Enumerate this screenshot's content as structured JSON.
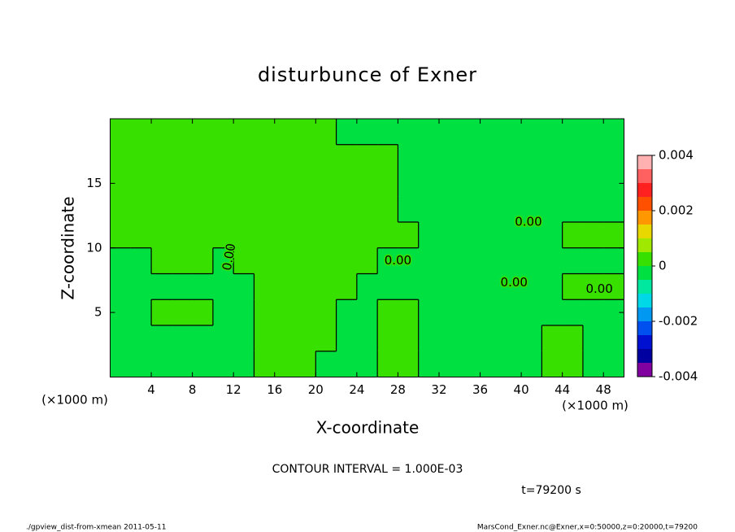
{
  "chart_data": {
    "type": "contour",
    "title": "disturbunce of Exner",
    "xlabel": "X-coordinate",
    "ylabel": "Z-coordinate",
    "xunit_labels": [
      "(×1000 m)",
      "(×1000 m)"
    ],
    "xlim": [
      0,
      50
    ],
    "ylim": [
      0,
      20
    ],
    "xticks": [
      4,
      8,
      12,
      16,
      20,
      24,
      28,
      32,
      36,
      40,
      44,
      48
    ],
    "yticks": [
      5,
      10,
      15
    ],
    "field": {
      "x": [
        1,
        3,
        5,
        7,
        9,
        11,
        13,
        15,
        17,
        19,
        21,
        23,
        25,
        27,
        29,
        31,
        33,
        35,
        37,
        39,
        41,
        43,
        45,
        47,
        49
      ],
      "z": [
        1,
        3,
        5,
        7,
        9,
        11,
        13,
        15,
        17,
        19
      ],
      "values": [
        [
          -0.0003,
          -0.0003,
          -0.0003,
          -0.0003,
          -0.0003,
          -0.0003,
          -0.0003,
          0.0003,
          0.0003,
          0.0003,
          -0.0003,
          -0.0003,
          -0.0003,
          0.0003,
          0.0003,
          -0.0003,
          -0.0003,
          -0.0003,
          -0.0003,
          -0.0003,
          -0.0003,
          0.0003,
          0.0003,
          -0.0003,
          -0.0003
        ],
        [
          -0.0003,
          -0.0003,
          -0.0003,
          -0.0003,
          -0.0003,
          -0.0003,
          -0.0003,
          0.0003,
          0.0003,
          0.0003,
          0.0003,
          -0.0003,
          -0.0003,
          0.0003,
          0.0003,
          -0.0003,
          -0.0003,
          -0.0003,
          -0.0003,
          -0.0003,
          -0.0003,
          0.0003,
          0.0003,
          -0.0003,
          -0.0003
        ],
        [
          -0.0003,
          -0.0003,
          0.0003,
          0.0003,
          0.0003,
          -0.0003,
          -0.0003,
          0.0003,
          0.0003,
          0.0003,
          0.0003,
          -0.0003,
          -0.0003,
          0.0003,
          0.0003,
          -0.0003,
          -0.0003,
          -0.0003,
          -0.0003,
          -0.0003,
          -0.0003,
          -0.0003,
          -0.0003,
          -0.0003,
          -0.0003
        ],
        [
          -0.0003,
          -0.0003,
          -0.0003,
          -0.0003,
          -0.0003,
          -0.0003,
          -0.0003,
          0.0003,
          0.0003,
          0.0003,
          0.0003,
          0.0003,
          -0.0003,
          -0.0003,
          -0.0003,
          -0.0003,
          -0.0003,
          -0.0003,
          -0.0003,
          -0.0003,
          -0.0003,
          -0.0003,
          0.0003,
          0.0003,
          0.0003
        ],
        [
          -0.0003,
          -0.0003,
          0.0003,
          0.0003,
          0.0003,
          -0.0003,
          0.0003,
          0.0003,
          0.0003,
          0.0003,
          0.0003,
          0.0003,
          0.0003,
          -0.0003,
          -0.0003,
          -0.0003,
          -0.0003,
          -0.0003,
          -0.0003,
          -0.0003,
          -0.0003,
          -0.0003,
          -0.0003,
          -0.0003,
          -0.0003
        ],
        [
          0.0003,
          0.0003,
          0.0003,
          0.0003,
          0.0003,
          0.0003,
          0.0003,
          0.0003,
          0.0003,
          0.0003,
          0.0003,
          0.0003,
          0.0003,
          0.0003,
          0.0003,
          -0.0003,
          -0.0003,
          -0.0003,
          -0.0003,
          -0.0003,
          -0.0003,
          -0.0003,
          0.0003,
          0.0003,
          0.0003
        ],
        [
          0.0003,
          0.0003,
          0.0003,
          0.0003,
          0.0003,
          0.0003,
          0.0003,
          0.0003,
          0.0003,
          0.0003,
          0.0003,
          0.0003,
          0.0003,
          0.0003,
          -0.0003,
          -0.0003,
          -0.0003,
          -0.0003,
          -0.0003,
          -0.0003,
          -0.0003,
          -0.0003,
          -0.0003,
          -0.0003,
          -0.0003
        ],
        [
          0.0003,
          0.0003,
          0.0003,
          0.0003,
          0.0003,
          0.0003,
          0.0003,
          0.0003,
          0.0003,
          0.0003,
          0.0003,
          0.0003,
          0.0003,
          0.0003,
          -0.0003,
          -0.0003,
          -0.0003,
          -0.0003,
          -0.0003,
          -0.0003,
          -0.0003,
          -0.0003,
          -0.0003,
          -0.0003,
          -0.0003
        ],
        [
          0.0003,
          0.0003,
          0.0003,
          0.0003,
          0.0003,
          0.0003,
          0.0003,
          0.0003,
          0.0003,
          0.0003,
          0.0003,
          0.0003,
          0.0003,
          0.0003,
          -0.0003,
          -0.0003,
          -0.0003,
          -0.0003,
          -0.0003,
          -0.0003,
          -0.0003,
          -0.0003,
          -0.0003,
          -0.0003,
          -0.0003
        ],
        [
          0.0003,
          0.0003,
          0.0003,
          0.0003,
          0.0003,
          0.0003,
          0.0003,
          0.0003,
          0.0003,
          0.0003,
          0.0003,
          -0.0003,
          -0.0003,
          -0.0003,
          -0.0003,
          -0.0003,
          -0.0003,
          -0.0003,
          -0.0003,
          -0.0003,
          -0.0003,
          -0.0003,
          -0.0003,
          -0.0003,
          -0.0003
        ]
      ]
    },
    "contour_labels": [
      {
        "text": "0.00",
        "x": 11.6,
        "z": 9.3
      },
      {
        "text": "0.00",
        "x": 28.0,
        "z": 9.0
      },
      {
        "text": "0.00",
        "x": 40.7,
        "z": 12.0
      },
      {
        "text": "0.00",
        "x": 39.3,
        "z": 7.3
      },
      {
        "text": "0.00",
        "x": 47.6,
        "z": 6.8
      }
    ],
    "colorbar": {
      "lim": [
        -0.004,
        0.004
      ],
      "ticks": [
        0.004,
        0.002,
        0,
        -0.002,
        -0.004
      ],
      "levels": [
        -0.004,
        -0.0035,
        -0.003,
        -0.0025,
        -0.002,
        -0.0015,
        -0.001,
        -0.0005,
        0,
        0.0005,
        0.001,
        0.0015,
        0.002,
        0.0025,
        0.003,
        0.0035,
        0.004
      ],
      "colors": [
        "#8000a0",
        "#0000a0",
        "#0010d0",
        "#0050f0",
        "#0098f0",
        "#00d8e8",
        "#00e8a0",
        "#00e040",
        "#38e000",
        "#a0e800",
        "#e8d800",
        "#ff9800",
        "#ff5000",
        "#ff2020",
        "#ff6060",
        "#ffb0b0"
      ]
    },
    "contour_interval_text": "CONTOUR INTERVAL = 1.000E-03",
    "time_text": "t=79200 s",
    "footer_left": "./gpview_dist-from-xmean  2011-05-11",
    "footer_right": "MarsCond_Exner.nc@Exner,x=0:50000,z=0:20000,t=79200"
  }
}
